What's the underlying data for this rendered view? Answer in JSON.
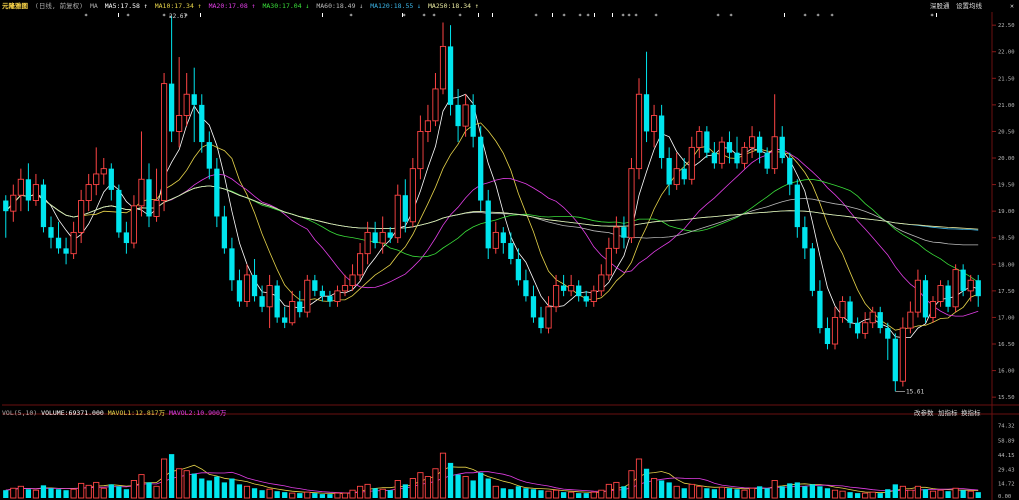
{
  "header": {
    "title": "元隆雅图",
    "period": "(日线, 前复权)",
    "ma_label": "MA",
    "ma": [
      {
        "name": "MA5",
        "value": "17.58",
        "color": "#ffffff",
        "arrow": "↑"
      },
      {
        "name": "MA10",
        "value": "17.34",
        "color": "#e6d34a",
        "arrow": "↑"
      },
      {
        "name": "MA20",
        "value": "17.08",
        "color": "#e23ee6",
        "arrow": "↑"
      },
      {
        "name": "MA30",
        "value": "17.04",
        "color": "#3adf3a",
        "arrow": "↓"
      },
      {
        "name": "MA60",
        "value": "18.49",
        "color": "#bbbbbb",
        "arrow": "↓"
      },
      {
        "name": "MA120",
        "value": "18.55",
        "color": "#3bb4e6",
        "arrow": "↓"
      },
      {
        "name": "MA250",
        "value": "18.34",
        "color": "#e8e8a0",
        "arrow": "↑"
      }
    ],
    "buttons": [
      {
        "label": "深股通"
      },
      {
        "label": "设置均线"
      }
    ]
  },
  "annotations": {
    "high": "22.67",
    "low": "15.61"
  },
  "volume": {
    "label": "VOL(5,10)",
    "volume": "VOLUME:69371.000",
    "mavol1": "MAVOL1:12.817万",
    "mavol2": "MAVOL2:10.900万",
    "buttons": [
      {
        "label": "改参数"
      },
      {
        "label": "加指标"
      },
      {
        "label": "换指标"
      }
    ]
  },
  "colors": {
    "up": "#ff4545",
    "down": "#00e5ee"
  },
  "chart_data": {
    "type": "candlestick",
    "y_ticks": [
      "22.50",
      "22.00",
      "21.50",
      "21.00",
      "20.50",
      "20.00",
      "19.50",
      "19.00",
      "18.50",
      "18.00",
      "17.50",
      "17.00",
      "16.50",
      "16.00",
      "15.50"
    ],
    "y_range": [
      15.39,
      22.71
    ],
    "vol_ticks": [
      "74.32",
      "58.89",
      "44.15",
      "29.43",
      "14.72",
      "0.00"
    ],
    "vol_range": [
      0,
      80
    ],
    "candles": [
      [
        19.2,
        19.0,
        18.5,
        19.3,
        8
      ],
      [
        19.0,
        19.3,
        18.8,
        19.5,
        10
      ],
      [
        19.3,
        19.6,
        19.0,
        19.8,
        12
      ],
      [
        19.6,
        19.2,
        19.0,
        19.9,
        9
      ],
      [
        19.2,
        19.5,
        19.1,
        19.7,
        8
      ],
      [
        19.5,
        18.7,
        18.6,
        19.6,
        13
      ],
      [
        18.7,
        18.5,
        18.3,
        18.9,
        10
      ],
      [
        18.5,
        18.3,
        18.2,
        18.8,
        9
      ],
      [
        18.3,
        18.2,
        18.0,
        18.5,
        8
      ],
      [
        18.2,
        18.6,
        18.1,
        18.8,
        9
      ],
      [
        18.6,
        19.2,
        18.4,
        19.4,
        15
      ],
      [
        19.2,
        19.5,
        19.0,
        19.7,
        13
      ],
      [
        19.5,
        19.7,
        19.3,
        20.2,
        16
      ],
      [
        19.7,
        19.8,
        19.5,
        20.0,
        10
      ],
      [
        19.8,
        19.4,
        19.2,
        19.9,
        14
      ],
      [
        19.4,
        18.6,
        18.5,
        19.5,
        12
      ],
      [
        18.6,
        18.4,
        18.2,
        18.8,
        9
      ],
      [
        18.4,
        19.1,
        18.3,
        19.3,
        18
      ],
      [
        19.1,
        19.6,
        18.9,
        20.5,
        24
      ],
      [
        19.6,
        18.9,
        18.7,
        19.9,
        16
      ],
      [
        18.9,
        19.2,
        18.8,
        19.8,
        12
      ],
      [
        19.2,
        21.4,
        19.0,
        21.6,
        40
      ],
      [
        21.4,
        20.5,
        20.3,
        22.67,
        45
      ],
      [
        20.5,
        20.8,
        20.2,
        21.9,
        30
      ],
      [
        20.8,
        21.2,
        20.6,
        21.6,
        28
      ],
      [
        21.2,
        21.0,
        20.3,
        21.7,
        25
      ],
      [
        21.0,
        20.3,
        20.1,
        21.2,
        20
      ],
      [
        20.3,
        19.8,
        19.6,
        20.5,
        18
      ],
      [
        19.8,
        18.9,
        18.7,
        20.0,
        22
      ],
      [
        18.9,
        18.3,
        18.2,
        19.1,
        16
      ],
      [
        18.3,
        17.7,
        17.5,
        18.5,
        20
      ],
      [
        17.7,
        17.3,
        17.2,
        17.9,
        14
      ],
      [
        17.3,
        17.8,
        17.2,
        18.0,
        12
      ],
      [
        17.8,
        17.4,
        17.3,
        18.1,
        10
      ],
      [
        17.4,
        17.2,
        17.1,
        17.6,
        8
      ],
      [
        17.2,
        17.6,
        16.8,
        17.8,
        9
      ],
      [
        17.6,
        17.0,
        16.9,
        17.7,
        7
      ],
      [
        17.0,
        16.9,
        16.8,
        17.2,
        6
      ],
      [
        16.9,
        17.3,
        16.85,
        17.5,
        5
      ],
      [
        17.3,
        17.1,
        17.0,
        17.5,
        5
      ],
      [
        17.1,
        17.7,
        17.0,
        17.8,
        6
      ],
      [
        17.7,
        17.5,
        17.4,
        17.8,
        5
      ],
      [
        17.5,
        17.4,
        17.3,
        17.6,
        4
      ],
      [
        17.4,
        17.3,
        17.2,
        17.5,
        4
      ],
      [
        17.3,
        17.5,
        17.2,
        17.6,
        5
      ],
      [
        17.5,
        17.6,
        17.4,
        17.8,
        5
      ],
      [
        17.6,
        17.8,
        17.5,
        18.0,
        8
      ],
      [
        17.8,
        18.2,
        17.7,
        18.4,
        12
      ],
      [
        18.2,
        18.6,
        18.0,
        18.8,
        14
      ],
      [
        18.6,
        18.4,
        18.3,
        18.8,
        10
      ],
      [
        18.4,
        18.6,
        18.2,
        18.9,
        9
      ],
      [
        18.6,
        18.5,
        18.4,
        18.7,
        8
      ],
      [
        18.5,
        19.3,
        18.4,
        19.5,
        18
      ],
      [
        19.3,
        18.8,
        18.6,
        19.6,
        14
      ],
      [
        18.8,
        19.8,
        18.7,
        20.0,
        20
      ],
      [
        19.8,
        20.5,
        19.6,
        20.8,
        26
      ],
      [
        20.5,
        20.7,
        20.3,
        21.0,
        22
      ],
      [
        20.7,
        21.3,
        20.6,
        21.6,
        30
      ],
      [
        21.3,
        22.1,
        21.2,
        22.55,
        46
      ],
      [
        22.1,
        21.0,
        20.8,
        22.5,
        36
      ],
      [
        21.0,
        20.6,
        20.3,
        21.3,
        24
      ],
      [
        20.6,
        21.0,
        20.4,
        21.2,
        22
      ],
      [
        21.0,
        20.4,
        20.2,
        21.2,
        18
      ],
      [
        20.4,
        19.2,
        19.0,
        20.6,
        26
      ],
      [
        19.2,
        18.3,
        18.1,
        19.4,
        20
      ],
      [
        18.3,
        18.6,
        18.2,
        18.8,
        12
      ],
      [
        18.6,
        18.4,
        18.2,
        18.7,
        10
      ],
      [
        18.4,
        18.1,
        18.0,
        18.6,
        9
      ],
      [
        18.1,
        17.7,
        17.6,
        18.3,
        12
      ],
      [
        17.7,
        17.4,
        17.3,
        17.9,
        10
      ],
      [
        17.4,
        17.0,
        16.9,
        17.6,
        9
      ],
      [
        17.0,
        16.8,
        16.7,
        17.2,
        8
      ],
      [
        16.8,
        17.2,
        16.7,
        17.4,
        7
      ],
      [
        17.2,
        17.6,
        17.1,
        17.8,
        8
      ],
      [
        17.6,
        17.5,
        17.4,
        17.8,
        6
      ],
      [
        17.5,
        17.6,
        17.4,
        17.8,
        6
      ],
      [
        17.6,
        17.4,
        17.3,
        17.7,
        5
      ],
      [
        17.4,
        17.3,
        17.2,
        17.5,
        5
      ],
      [
        17.3,
        17.5,
        17.2,
        17.6,
        6
      ],
      [
        17.5,
        17.8,
        17.4,
        18.0,
        8
      ],
      [
        17.8,
        18.3,
        17.7,
        18.5,
        14
      ],
      [
        18.3,
        18.7,
        18.2,
        18.9,
        16
      ],
      [
        18.7,
        18.5,
        18.3,
        18.9,
        12
      ],
      [
        18.5,
        19.8,
        18.4,
        20.0,
        28
      ],
      [
        19.8,
        21.2,
        19.6,
        21.5,
        40
      ],
      [
        21.2,
        20.5,
        20.3,
        22.0,
        30
      ],
      [
        20.5,
        20.8,
        20.2,
        21.0,
        20
      ],
      [
        20.8,
        20.0,
        19.8,
        21.0,
        18
      ],
      [
        20.0,
        19.5,
        19.3,
        20.2,
        16
      ],
      [
        19.5,
        19.8,
        19.4,
        20.1,
        12
      ],
      [
        19.8,
        19.6,
        19.5,
        20.0,
        10
      ],
      [
        19.6,
        20.2,
        19.5,
        20.4,
        14
      ],
      [
        20.2,
        20.5,
        20.0,
        20.6,
        12
      ],
      [
        20.5,
        20.1,
        20.0,
        20.6,
        10
      ],
      [
        20.1,
        19.9,
        19.8,
        20.3,
        9
      ],
      [
        19.9,
        20.3,
        19.8,
        20.4,
        11
      ],
      [
        20.3,
        20.1,
        19.9,
        20.5,
        10
      ],
      [
        20.1,
        19.9,
        19.8,
        20.4,
        9
      ],
      [
        19.9,
        20.2,
        19.8,
        20.3,
        8
      ],
      [
        20.2,
        20.4,
        20.0,
        20.6,
        10
      ],
      [
        20.4,
        20.1,
        19.9,
        20.5,
        12
      ],
      [
        20.1,
        19.8,
        19.7,
        20.2,
        10
      ],
      [
        19.8,
        20.4,
        19.7,
        21.2,
        18
      ],
      [
        20.4,
        20.0,
        19.9,
        20.6,
        12
      ],
      [
        20.0,
        19.5,
        19.3,
        20.1,
        15
      ],
      [
        19.5,
        18.7,
        18.5,
        19.6,
        16
      ],
      [
        18.7,
        18.3,
        18.1,
        18.9,
        12
      ],
      [
        18.3,
        17.5,
        17.4,
        18.4,
        14
      ],
      [
        17.5,
        16.8,
        16.7,
        17.7,
        12
      ],
      [
        16.8,
        16.5,
        16.4,
        17.0,
        10
      ],
      [
        16.5,
        17.0,
        16.4,
        17.2,
        8
      ],
      [
        17.0,
        17.3,
        16.9,
        17.4,
        7
      ],
      [
        17.3,
        16.9,
        16.8,
        17.4,
        6
      ],
      [
        16.9,
        16.7,
        16.6,
        17.0,
        5
      ],
      [
        16.7,
        16.9,
        16.6,
        17.1,
        5
      ],
      [
        16.9,
        17.1,
        16.8,
        17.2,
        6
      ],
      [
        17.1,
        16.8,
        16.7,
        17.2,
        5
      ],
      [
        16.8,
        16.6,
        16.2,
        16.9,
        9
      ],
      [
        16.6,
        15.8,
        15.61,
        16.7,
        14
      ],
      [
        15.8,
        16.8,
        15.7,
        17.0,
        12
      ],
      [
        16.8,
        17.1,
        16.7,
        17.3,
        8
      ],
      [
        17.1,
        17.7,
        17.0,
        17.9,
        12
      ],
      [
        17.7,
        17.0,
        16.9,
        17.8,
        9
      ],
      [
        17.0,
        17.3,
        16.9,
        17.4,
        7
      ],
      [
        17.3,
        17.6,
        17.2,
        17.7,
        8
      ],
      [
        17.6,
        17.2,
        17.1,
        17.7,
        7
      ],
      [
        17.2,
        17.9,
        17.1,
        18.0,
        10
      ],
      [
        17.9,
        17.5,
        17.4,
        18.0,
        8
      ],
      [
        17.5,
        17.7,
        17.3,
        17.8,
        7
      ],
      [
        17.7,
        17.4,
        17.2,
        17.8,
        6
      ]
    ]
  }
}
